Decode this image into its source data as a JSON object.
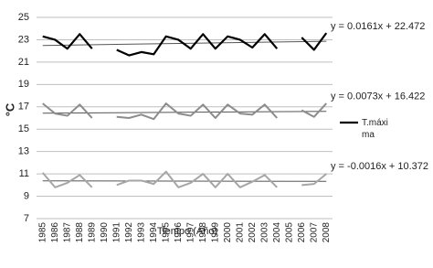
{
  "chart_data": {
    "type": "line",
    "y_label": "°C",
    "x_label": "Tiempo (Año)",
    "categories": [
      "1985",
      "1986",
      "1987",
      "1988",
      "1989",
      "1990",
      "1991",
      "1992",
      "1993",
      "1994",
      "1995",
      "1996",
      "1997",
      "1998",
      "1999",
      "2000",
      "2001",
      "2002",
      "2003",
      "2004",
      "2005",
      "2006",
      "2007",
      "2008"
    ],
    "series": [
      {
        "name": "T.máxi ma",
        "color": "#000000",
        "width": 2.2,
        "values": [
          23.3,
          23.0,
          22.2,
          23.5,
          22.2,
          null,
          22.1,
          21.6,
          21.9,
          21.7,
          23.3,
          23.0,
          22.2,
          23.5,
          22.2,
          23.3,
          23.0,
          22.3,
          23.5,
          22.2,
          null,
          23.2,
          22.1,
          23.6
        ]
      },
      {
        "color": "#8c8c8c",
        "width": 2,
        "values": [
          17.3,
          16.4,
          16.2,
          17.2,
          16.0,
          null,
          16.1,
          16.0,
          16.3,
          15.9,
          17.3,
          16.4,
          16.2,
          17.2,
          16.0,
          17.2,
          16.4,
          16.3,
          17.2,
          16.0,
          null,
          16.7,
          16.1,
          17.3
        ]
      },
      {
        "color": "#a6a6a6",
        "width": 2,
        "values": [
          11.1,
          9.8,
          10.2,
          10.9,
          9.8,
          null,
          10.0,
          10.4,
          10.4,
          10.1,
          11.2,
          9.8,
          10.2,
          11.0,
          9.8,
          11.0,
          9.8,
          10.3,
          10.9,
          9.8,
          null,
          10.0,
          10.1,
          11.0
        ]
      }
    ],
    "trendlines": [
      {
        "label": "y = 0.0161x + 22.472",
        "slope": 0.0161,
        "intercept": 22.472
      },
      {
        "label": "y = 0.0073x + 16.422",
        "slope": 0.0073,
        "intercept": 16.422
      },
      {
        "label": "y = -0.0016x + 10.372",
        "slope": -0.0016,
        "intercept": 10.372
      }
    ],
    "ylim": [
      7,
      25
    ],
    "yticks": [
      7,
      9,
      11,
      13,
      15,
      17,
      19,
      21,
      23,
      25
    ],
    "grid": true
  }
}
